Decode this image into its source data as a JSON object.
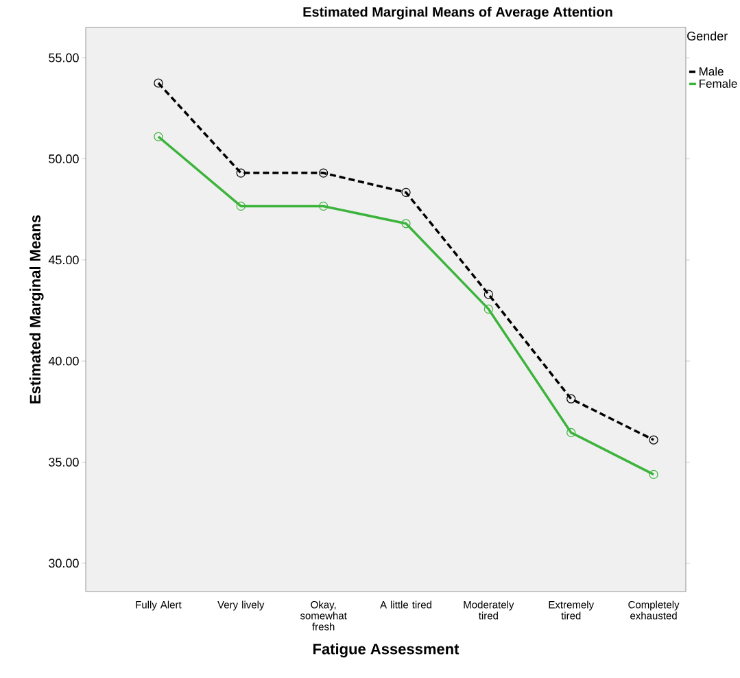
{
  "chart_data": {
    "type": "line",
    "title": "Estimated Marginal Means of Average Attention",
    "xlabel": "Fatigue Assessment",
    "ylabel": "Estimated Marginal Means",
    "legend_title": "Gender",
    "categories": [
      "Fully Alert",
      "Very lively",
      "Okay, somewhat fresh",
      "A little tired",
      "Moderately tired",
      "Extremely tired",
      "Completely exhausted"
    ],
    "series": [
      {
        "name": "Male",
        "color": "#000000",
        "line_style": "dashed",
        "values": [
          53.75,
          49.3,
          49.3,
          48.34,
          43.3,
          38.13,
          36.1
        ]
      },
      {
        "name": "Female",
        "color": "#3cb43c",
        "line_style": "solid",
        "values": [
          51.1,
          47.66,
          47.66,
          46.8,
          42.57,
          36.46,
          34.39
        ]
      }
    ],
    "ylim": [
      28.6,
      56.5
    ],
    "yticks": [
      {
        "value": 30,
        "label": "30.00"
      },
      {
        "value": 35,
        "label": "35.00"
      },
      {
        "value": 40,
        "label": "40.00"
      },
      {
        "value": 45,
        "label": "45.00"
      },
      {
        "value": 50,
        "label": "50.00"
      },
      {
        "value": 55,
        "label": "55.00"
      }
    ],
    "marker": "circle",
    "legend": "top right",
    "grid": false
  }
}
